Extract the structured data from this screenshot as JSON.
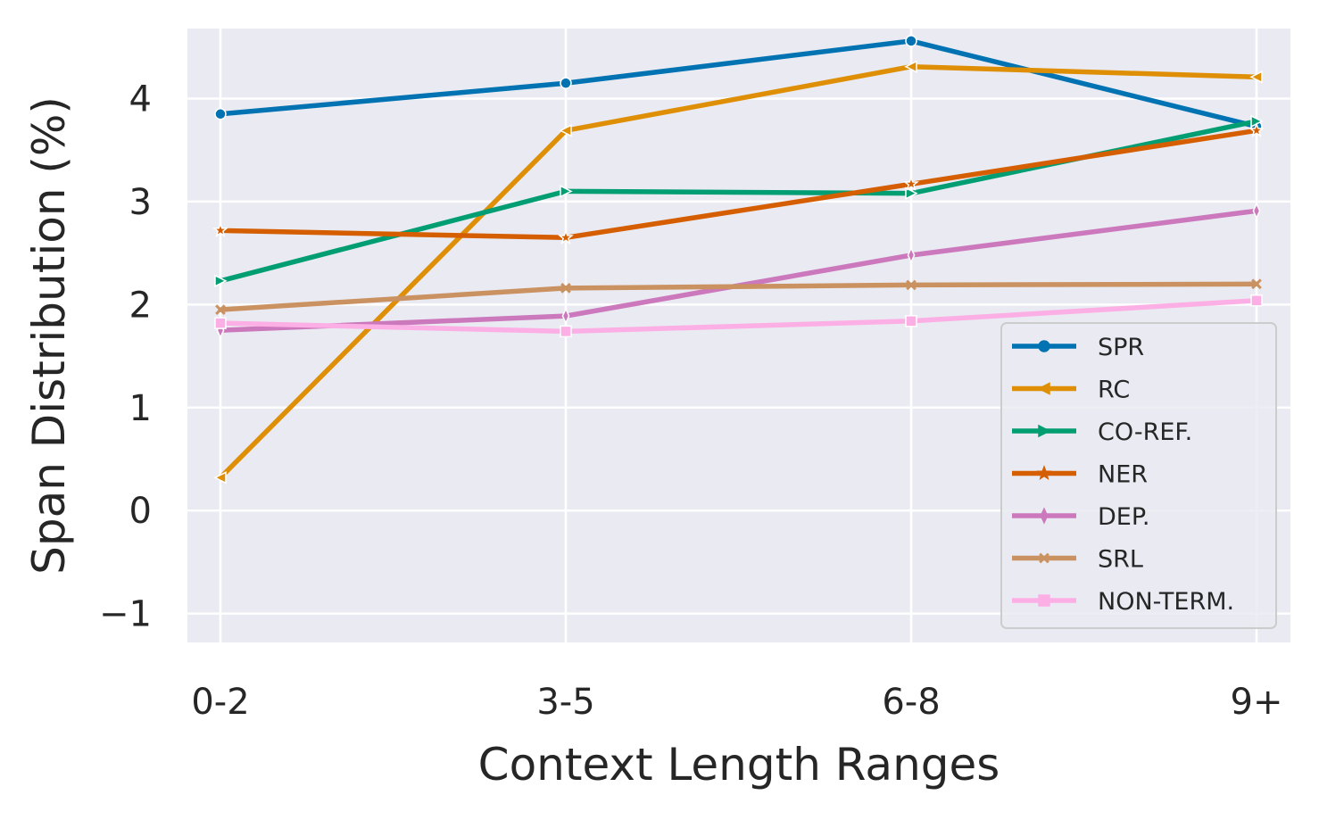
{
  "chart_data": {
    "type": "line",
    "xlabel": "Context Length Ranges",
    "ylabel": "Span Distribution (%)",
    "categories": [
      "0-2",
      "3-5",
      "6-8",
      "9+"
    ],
    "ylim": [
      -1.28,
      4.68
    ],
    "yticks": [
      -1,
      0,
      1,
      2,
      3,
      4
    ],
    "ytick_labels": [
      "−1",
      "0",
      "1",
      "2",
      "3",
      "4"
    ],
    "grid": true,
    "legend_position": "lower-right",
    "series": [
      {
        "name": "SPR",
        "values": [
          3.85,
          4.15,
          4.56,
          3.73
        ],
        "color": "#0173b2",
        "marker": "circle"
      },
      {
        "name": "RC",
        "values": [
          0.32,
          3.69,
          4.31,
          4.21
        ],
        "color": "#de8f05",
        "marker": "triangle-left"
      },
      {
        "name": "CO-REF.",
        "values": [
          2.23,
          3.1,
          3.08,
          3.78
        ],
        "color": "#029e73",
        "marker": "triangle-right"
      },
      {
        "name": "NER",
        "values": [
          2.72,
          2.65,
          3.17,
          3.69
        ],
        "color": "#d55e00",
        "marker": "star"
      },
      {
        "name": "DEP.",
        "values": [
          1.75,
          1.89,
          2.48,
          2.91
        ],
        "color": "#cc78bc",
        "marker": "thin-diamond"
      },
      {
        "name": "SRL",
        "values": [
          1.95,
          2.16,
          2.19,
          2.2
        ],
        "color": "#ca9161",
        "marker": "x"
      },
      {
        "name": "NON-TERM.",
        "values": [
          1.82,
          1.74,
          1.84,
          2.04
        ],
        "color": "#fbafe4",
        "marker": "square"
      }
    ]
  }
}
